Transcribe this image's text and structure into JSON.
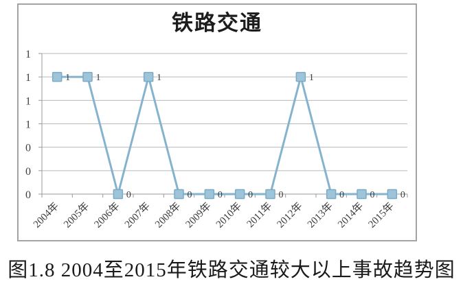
{
  "figure": {
    "caption": "图1.8 2004至2015年铁路交通较大以上事故趋势图"
  },
  "chart_data": {
    "type": "line",
    "title": "铁路交通",
    "categories": [
      "2004年",
      "2005年",
      "2006年",
      "2007年",
      "2008年",
      "2009年",
      "2010年",
      "2011年",
      "2012年",
      "2013年",
      "2014年",
      "2015年"
    ],
    "series": [
      {
        "name": "铁路交通",
        "values": [
          1,
          1,
          0,
          1,
          0,
          0,
          0,
          0,
          1,
          0,
          0,
          0
        ]
      }
    ],
    "point_labels": [
      "1",
      "1",
      "0",
      "1",
      "0",
      "0",
      "0",
      "0",
      "1",
      "0",
      "0",
      "0"
    ],
    "xlabel": "",
    "ylabel": "",
    "y_axis": {
      "min": 0,
      "max": 1.2,
      "tick_labels_top_to_bottom": [
        "1",
        "1",
        "1",
        "1",
        "0",
        "0",
        "0"
      ]
    },
    "grid": true,
    "legend": "none",
    "marker": "square",
    "colors": {
      "line": "#85b3ce",
      "marker_fill": "#9dc4d8",
      "marker_border": "#7cabc6",
      "grid": "#b8b8b8",
      "axis": "#9a9a9a",
      "label_text": "#3d3d3d"
    }
  }
}
